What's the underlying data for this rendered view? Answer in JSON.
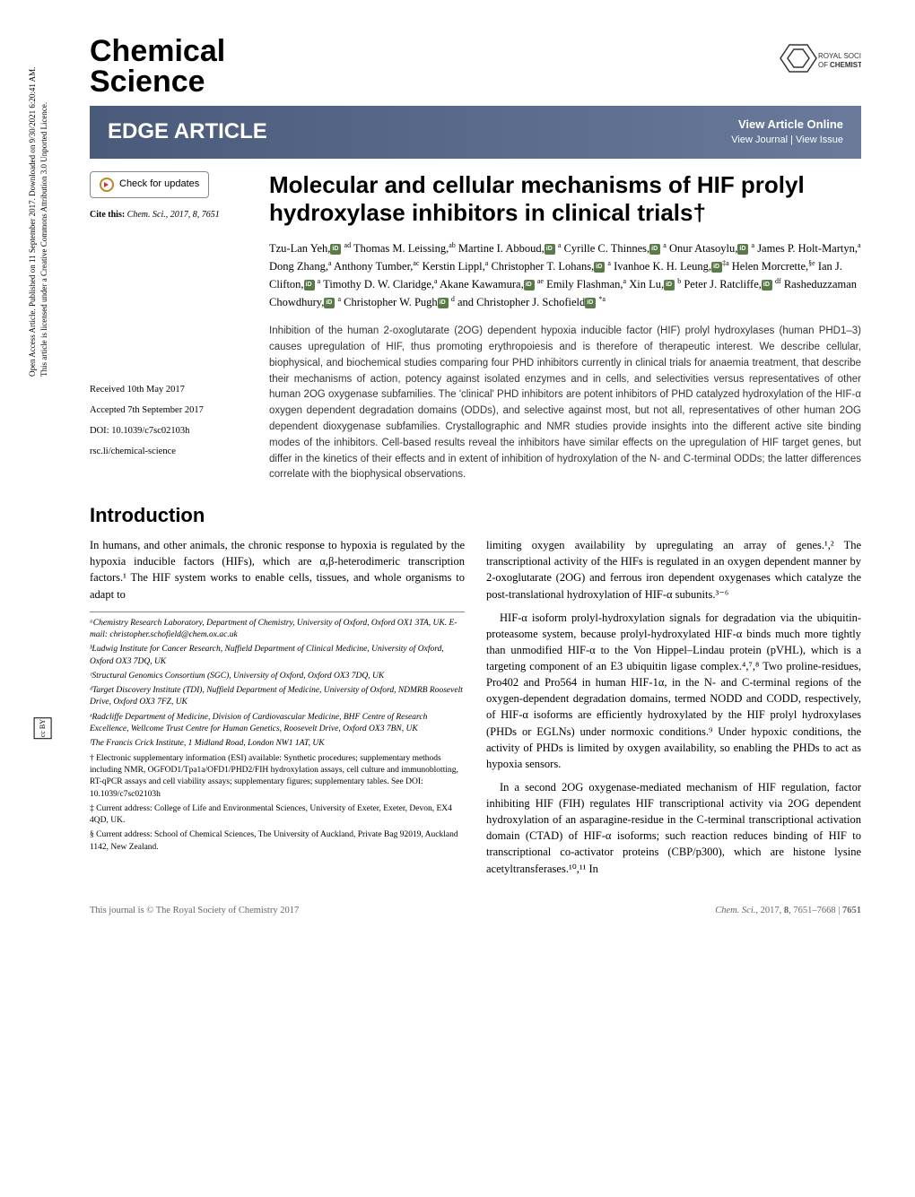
{
  "sidebar": {
    "access_text": "Open Access Article. Published on 11 September 2017. Downloaded on 9/30/2021 6:20:41 AM.",
    "license_text": "This article is licensed under a Creative Commons Attribution 3.0 Unported Licence.",
    "cc_label": "cc BY"
  },
  "header": {
    "journal_line1": "Chemical",
    "journal_line2": "Science",
    "publisher": "ROYAL SOCIETY OF CHEMISTRY"
  },
  "banner": {
    "article_type": "EDGE ARTICLE",
    "view_online": "View Article Online",
    "view_journal": "View Journal | View Issue"
  },
  "left": {
    "check_updates": "Check for updates",
    "cite_label": "Cite this:",
    "cite_value": "Chem. Sci., 2017, 8, 7651",
    "received": "Received 10th May 2017",
    "accepted": "Accepted 7th September 2017",
    "doi": "DOI: 10.1039/c7sc02103h",
    "rsc_link": "rsc.li/chemical-science"
  },
  "title": "Molecular and cellular mechanisms of HIF prolyl hydroxylase inhibitors in clinical trials†",
  "authors_html": "Tzu-Lan Yeh,{O} ad Thomas M. Leissing,ab Martine I. Abboud,{O} a Cyrille C. Thinnes,{O} a Onur Atasoylu,{O} a James P. Holt-Martyn,a Dong Zhang,a Anthony Tumber,ac Kerstin Lippl,a Christopher T. Lohans,{O} a Ivanhoe K. H. Leung,{O}‡a Helen Morcrette,§e Ian J. Clifton,{O} a Timothy D. W. Claridge,a Akane Kawamura,{O} ae Emily Flashman,a Xin Lu,{O} b Peter J. Ratcliffe,{O} df Rasheduzzaman Chowdhury,{O} a Christopher W. Pugh{O} d and Christopher J. Schofield{O} *a",
  "abstract": "Inhibition of the human 2-oxoglutarate (2OG) dependent hypoxia inducible factor (HIF) prolyl hydroxylases (human PHD1–3) causes upregulation of HIF, thus promoting erythropoiesis and is therefore of therapeutic interest. We describe cellular, biophysical, and biochemical studies comparing four PHD inhibitors currently in clinical trials for anaemia treatment, that describe their mechanisms of action, potency against isolated enzymes and in cells, and selectivities versus representatives of other human 2OG oxygenase subfamilies. The 'clinical' PHD inhibitors are potent inhibitors of PHD catalyzed hydroxylation of the HIF-α oxygen dependent degradation domains (ODDs), and selective against most, but not all, representatives of other human 2OG dependent dioxygenase subfamilies. Crystallographic and NMR studies provide insights into the different active site binding modes of the inhibitors. Cell-based results reveal the inhibitors have similar effects on the upregulation of HIF target genes, but differ in the kinetics of their effects and in extent of inhibition of hydroxylation of the N- and C-terminal ODDs; the latter differences correlate with the biophysical observations.",
  "intro": {
    "heading": "Introduction",
    "p1": "In humans, and other animals, the chronic response to hypoxia is regulated by the hypoxia inducible factors (HIFs), which are α,β-heterodimeric transcription factors.¹ The HIF system works to enable cells, tissues, and whole organisms to adapt to",
    "p1b": "limiting oxygen availability by upregulating an array of genes.¹,² The transcriptional activity of the HIFs is regulated in an oxygen dependent manner by 2-oxoglutarate (2OG) and ferrous iron dependent oxygenases which catalyze the post-translational hydroxylation of HIF-α subunits.³⁻⁶",
    "p2": "HIF-α isoform prolyl-hydroxylation signals for degradation via the ubiquitin-proteasome system, because prolyl-hydroxylated HIF-α binds much more tightly than unmodified HIF-α to the Von Hippel–Lindau protein (pVHL), which is a targeting component of an E3 ubiquitin ligase complex.⁴,⁷,⁸ Two proline-residues, Pro402 and Pro564 in human HIF-1α, in the N- and C-terminal regions of the oxygen-dependent degradation domains, termed NODD and CODD, respectively, of HIF-α isoforms are efficiently hydroxylated by the HIF prolyl hydroxylases (PHDs or EGLNs) under normoxic conditions.⁹ Under hypoxic conditions, the activity of PHDs is limited by oxygen availability, so enabling the PHDs to act as hypoxia sensors.",
    "p3": "In a second 2OG oxygenase-mediated mechanism of HIF regulation, factor inhibiting HIF (FIH) regulates HIF transcriptional activity via 2OG dependent hydroxylation of an asparagine-residue in the C-terminal transcriptional activation domain (CTAD) of HIF-α isoforms; such reaction reduces binding of HIF to transcriptional co-activator proteins (CBP/p300), which are histone lysine acetyltransferases.¹⁰,¹¹ In"
  },
  "affiliations": {
    "a": "ᵃChemistry Research Laboratory, Department of Chemistry, University of Oxford, Oxford OX1 3TA, UK. E-mail: christopher.schofield@chem.ox.ac.uk",
    "b": "ᵇLudwig Institute for Cancer Research, Nuffield Department of Clinical Medicine, University of Oxford, Oxford OX3 7DQ, UK",
    "c": "ᶜStructural Genomics Consortium (SGC), University of Oxford, Oxford OX3 7DQ, UK",
    "d": "ᵈTarget Discovery Institute (TDI), Nuffield Department of Medicine, University of Oxford, NDMRB Roosevelt Drive, Oxford OX3 7FZ, UK",
    "e": "ᵉRadcliffe Department of Medicine, Division of Cardiovascular Medicine, BHF Centre of Research Excellence, Wellcome Trust Centre for Human Genetics, Roosevelt Drive, Oxford OX3 7BN, UK",
    "f": "ᶠThe Francis Crick Institute, 1 Midland Road, London NW1 1AT, UK",
    "dagger": "† Electronic supplementary information (ESI) available: Synthetic procedures; supplementary methods including NMR, OGFOD1/Tpa1a/OFD1/PHD2/FIH hydroxylation assays, cell culture and immunoblotting, RT-qPCR assays and cell viability assays; supplementary figures; supplementary tables. See DOI: 10.1039/c7sc02103h",
    "ddagger": "‡ Current address: College of Life and Environmental Sciences, University of Exeter, Exeter, Devon, EX4 4QD, UK.",
    "section": "§ Current address: School of Chemical Sciences, The University of Auckland, Private Bag 92019, Auckland 1142, New Zealand."
  },
  "footer": {
    "copyright": "This journal is © The Royal Society of Chemistry 2017",
    "citation": "Chem. Sci., 2017, 8, 7651–7668 | 7651"
  },
  "colors": {
    "banner_start": "#4a5a7a",
    "banner_end": "#6a7a9a",
    "orcid": "#5a7a4a",
    "text": "#000000"
  }
}
